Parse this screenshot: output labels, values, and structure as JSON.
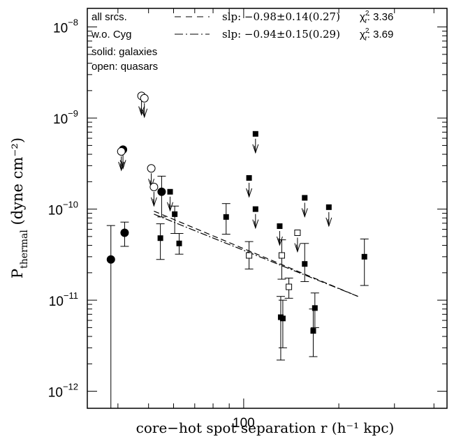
{
  "chart_data": {
    "type": "scatter",
    "title": "",
    "xlabel": "core−hot spot separation r (h⁻¹ kpc)",
    "ylabel": {
      "base": "P",
      "subscript": "thermal",
      "unit": " (dyne cm⁻²)"
    },
    "xscale": "log",
    "yscale": "log",
    "xlim": [
      32,
      440
    ],
    "ylim": [
      6.5e-13,
      1.6e-08
    ],
    "x_ticks": [
      {
        "value": 100,
        "label": "100"
      }
    ],
    "x_minor_ticks": [
      40,
      50,
      60,
      70,
      80,
      90,
      200,
      300,
      400
    ],
    "y_ticks": [
      {
        "value": 1e-12,
        "base": "10",
        "exp": "−12"
      },
      {
        "value": 1e-11,
        "base": "10",
        "exp": "−11"
      },
      {
        "value": 1e-10,
        "base": "10",
        "exp": "−10"
      },
      {
        "value": 1e-09,
        "base": "10",
        "exp": "−9"
      },
      {
        "value": 1e-08,
        "base": "10",
        "exp": "−8"
      }
    ],
    "grid": false,
    "legend_position": "top",
    "legend": {
      "notes": [
        "all srcs.",
        "w.o. Cyg",
        "solid: galaxies",
        "open: quasars"
      ],
      "fits": [
        {
          "label": "all srcs.",
          "style": "dashed",
          "text": "slp: −0.98±0.14(0.27)",
          "chi_label": "χ",
          "chi_sup": "2",
          "chi_sub": "r",
          "chi_value": ": 3.36"
        },
        {
          "label": "w.o. Cyg",
          "style": "dash-dot",
          "text": "slp: −0.94±0.15(0.29)",
          "chi_label": "χ",
          "chi_sup": "2",
          "chi_sub": "r",
          "chi_value": ": 3.69"
        }
      ]
    },
    "fit_lines": [
      {
        "label": "all srcs.",
        "style": "dashed",
        "x": [
          52,
          230
        ],
        "y": [
          9.5e-11,
          1.1e-11
        ]
      },
      {
        "label": "w.o. Cyg",
        "style": "dash-dot",
        "x": [
          52,
          230
        ],
        "y": [
          8.8e-11,
          1.1e-11
        ]
      }
    ],
    "series": [
      {
        "marker": "filled-circle",
        "points": [
          {
            "x": 38,
            "y": 2.8e-11,
            "ylo": 1e-13,
            "yhi": 6.6e-11
          },
          {
            "x": 42,
            "y": 5.5e-11,
            "ylo": 3.9e-11,
            "yhi": 7.2e-11
          },
          {
            "x": 41.5,
            "y": 4.5e-10,
            "upper_limit": true
          },
          {
            "x": 55,
            "y": 1.55e-10,
            "ylo": 8.2e-11,
            "yhi": 2.3e-10
          }
        ]
      },
      {
        "marker": "open-circle",
        "points": [
          {
            "x": 41,
            "y": 4.3e-10,
            "upper_limit": true
          },
          {
            "x": 47.5,
            "y": 1.75e-09,
            "upper_limit": true
          },
          {
            "x": 48.5,
            "y": 1.65e-09,
            "upper_limit": true
          },
          {
            "x": 51,
            "y": 2.8e-10,
            "upper_limit": true
          },
          {
            "x": 52,
            "y": 1.75e-10,
            "upper_limit": true
          }
        ]
      },
      {
        "marker": "filled-square",
        "points": [
          {
            "x": 54.5,
            "y": 4.8e-11,
            "ylo": 2.8e-11,
            "yhi": 6.9e-11
          },
          {
            "x": 58.5,
            "y": 1.55e-10,
            "upper_limit": true
          },
          {
            "x": 60.5,
            "y": 8.8e-11,
            "ylo": 5.4e-11,
            "yhi": 1.08e-10
          },
          {
            "x": 62.5,
            "y": 4.2e-11,
            "ylo": 3.2e-11,
            "yhi": 5.4e-11
          },
          {
            "x": 88,
            "y": 8.2e-11,
            "ylo": 5.3e-11,
            "yhi": 1.15e-10
          },
          {
            "x": 104,
            "y": 2.2e-10,
            "upper_limit": true
          },
          {
            "x": 109,
            "y": 6.7e-10,
            "upper_limit": true
          },
          {
            "x": 109,
            "y": 1e-10,
            "upper_limit": true
          },
          {
            "x": 130,
            "y": 6.5e-11,
            "upper_limit": true
          },
          {
            "x": 131,
            "y": 6.5e-12,
            "ylo": 2.2e-12,
            "yhi": 1.1e-11
          },
          {
            "x": 133,
            "y": 6.3e-12,
            "ylo": 3e-12,
            "yhi": 1e-11
          },
          {
            "x": 156,
            "y": 1.33e-10,
            "upper_limit": true
          },
          {
            "x": 156,
            "y": 2.5e-11,
            "ylo": 1.6e-11,
            "yhi": 4.2e-11
          },
          {
            "x": 166,
            "y": 4.6e-12,
            "ylo": 2.4e-12,
            "yhi": 8e-12
          },
          {
            "x": 168,
            "y": 8.2e-12,
            "ylo": 5e-12,
            "yhi": 1.2e-11
          },
          {
            "x": 186,
            "y": 1.05e-10,
            "upper_limit": true
          },
          {
            "x": 241,
            "y": 3e-11,
            "ylo": 1.45e-11,
            "yhi": 4.7e-11
          }
        ]
      },
      {
        "marker": "open-square",
        "points": [
          {
            "x": 104,
            "y": 3.1e-11,
            "ylo": 2.2e-11,
            "yhi": 4.4e-11
          },
          {
            "x": 132,
            "y": 3.1e-11,
            "ylo": 1.7e-11,
            "yhi": 4.6e-11
          },
          {
            "x": 139,
            "y": 1.4e-11,
            "ylo": 1.05e-11,
            "yhi": 1.75e-11
          },
          {
            "x": 148,
            "y": 5.5e-11,
            "upper_limit": true
          }
        ]
      }
    ]
  }
}
